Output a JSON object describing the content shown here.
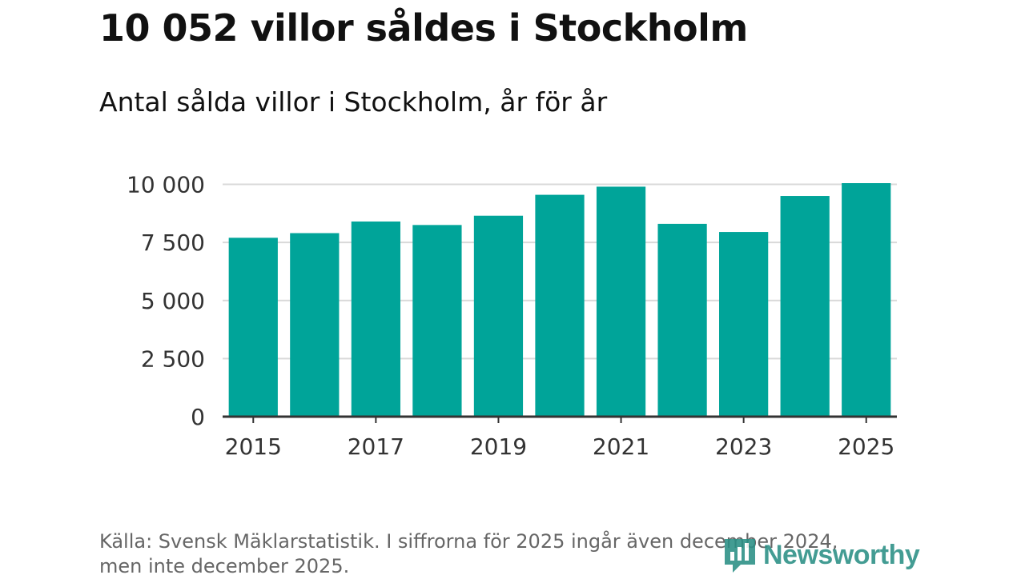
{
  "header": {
    "title": "10 052 villor såldes i Stockholm",
    "subtitle": "Antal sålda villor i Stockholm, år för år"
  },
  "footer": {
    "source_line1": "Källa: Svensk Mäklarstatistik. I siffrorna för 2025 ingår även december 2024,",
    "source_line2": "men inte december 2025."
  },
  "logo": {
    "text": "Newsworthy",
    "icon": "newsworthy-logo-icon"
  },
  "colors": {
    "bar": "#00a499",
    "grid": "#d9d9d9",
    "axis": "#333333",
    "text": "#333333"
  },
  "chart_data": {
    "type": "bar",
    "title": "10 052 villor såldes i Stockholm",
    "subtitle": "Antal sålda villor i Stockholm, år för år",
    "categories": [
      "2015",
      "2016",
      "2017",
      "2018",
      "2019",
      "2020",
      "2021",
      "2022",
      "2023",
      "2024",
      "2025"
    ],
    "values": [
      7700,
      7900,
      8400,
      8250,
      8650,
      9550,
      9900,
      8300,
      7950,
      9500,
      10052
    ],
    "x_tick_labels": [
      "2015",
      "2017",
      "2019",
      "2021",
      "2023",
      "2025"
    ],
    "y_ticks": [
      0,
      2500,
      5000,
      7500,
      10000
    ],
    "y_tick_labels": [
      "0",
      "2 500",
      "5 000",
      "7 500",
      "10 000"
    ],
    "ylim": [
      0,
      10052
    ],
    "xlabel": "",
    "ylabel": "",
    "grid": true
  }
}
